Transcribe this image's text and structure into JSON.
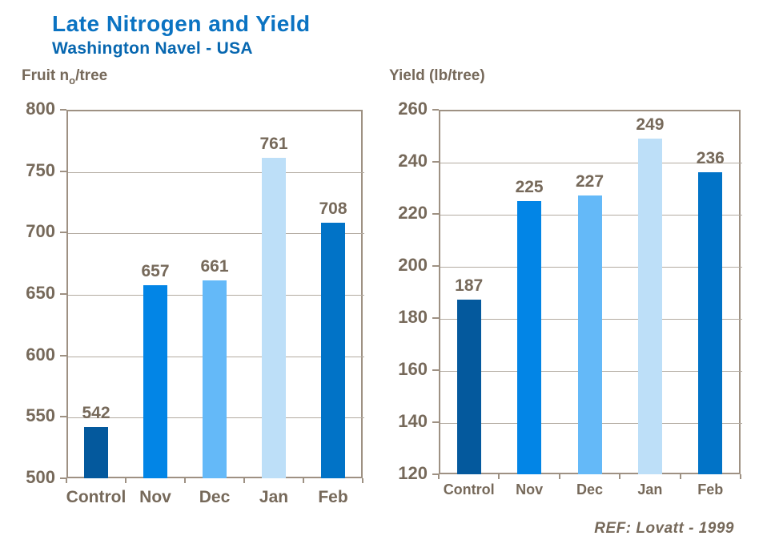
{
  "header": {
    "title": "Late Nitrogen and Yield",
    "subtitle": "Washington Navel - USA"
  },
  "footer": {
    "ref": "REF: Lovatt - 1999"
  },
  "colors": {
    "title": "#0B73C2",
    "subtitle": "#0767B0",
    "text": "#76695A",
    "plot_border": "#9E9183",
    "gridline": "#B3ABA1",
    "bar_palette": [
      "#04599D",
      "#0285E6",
      "#64B9F8",
      "#BDDFF8",
      "#0173C7"
    ]
  },
  "chart_data": [
    {
      "type": "bar",
      "title": "Fruit no/tree",
      "title_parts": {
        "pre": "Fruit n",
        "sub": "o",
        "post": "/tree"
      },
      "categories": [
        "Control",
        "Nov",
        "Dec",
        "Jan",
        "Feb"
      ],
      "values": [
        542,
        657,
        661,
        761,
        708
      ],
      "yticks": [
        800,
        750,
        700,
        650,
        600,
        550,
        500
      ],
      "ylim": [
        500,
        800
      ],
      "grid": true,
      "legend": "none",
      "bar_colors": [
        "#04599D",
        "#0285E6",
        "#64B9F8",
        "#BDDFF8",
        "#0173C7"
      ]
    },
    {
      "type": "bar",
      "title": "Yield (lb/tree)",
      "title_parts": {
        "pre": "Yield (lb/tree)",
        "sub": "",
        "post": ""
      },
      "categories": [
        "Control",
        "Nov",
        "Dec",
        "Jan",
        "Feb"
      ],
      "values": [
        187,
        225,
        227,
        249,
        236
      ],
      "yticks": [
        260,
        240,
        220,
        200,
        180,
        160,
        140,
        120
      ],
      "ylim": [
        120,
        260
      ],
      "grid": true,
      "legend": "none",
      "bar_colors": [
        "#04599D",
        "#0285E6",
        "#64B9F8",
        "#BDDFF8",
        "#0173C7"
      ]
    }
  ]
}
